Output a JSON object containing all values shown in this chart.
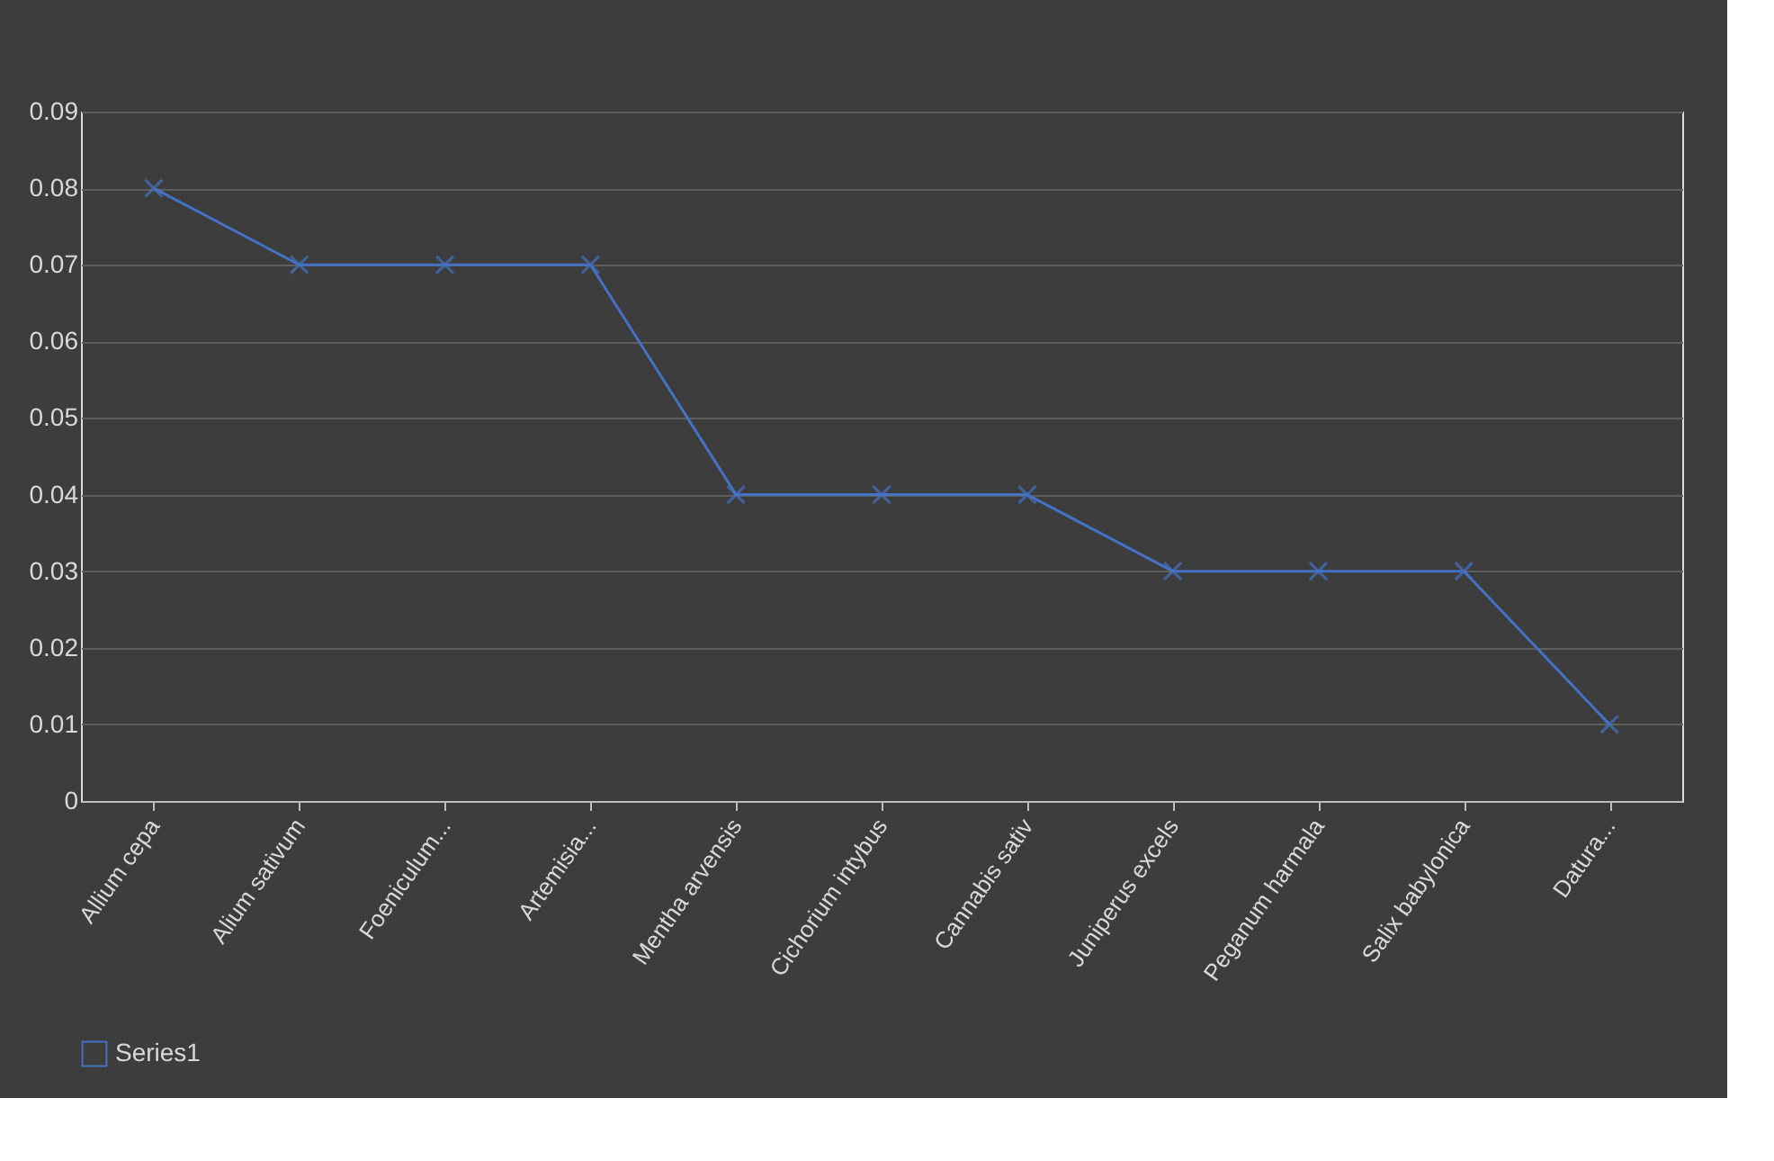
{
  "chart_data": {
    "type": "line",
    "categories": [
      "Allium cepa",
      "Alium sativum",
      "Foeniculum...",
      "Artemisia...",
      "Mentha arvensis",
      "Cichorium intybus",
      "Cannabis sativ",
      "Juniperus excels",
      "Peganum harmala",
      "Salix babylonica",
      "Datura..."
    ],
    "series": [
      {
        "name": "Series1",
        "color": "#4472c4",
        "values": [
          0.08,
          0.07,
          0.07,
          0.07,
          0.04,
          0.04,
          0.04,
          0.03,
          0.03,
          0.03,
          0.01
        ]
      }
    ],
    "ylim": [
      0,
      0.09
    ],
    "yticks": [
      0,
      0.01,
      0.02,
      0.03,
      0.04,
      0.05,
      0.06,
      0.07,
      0.08,
      0.09
    ],
    "grid": "y",
    "legend": "bottom",
    "marker": "cross",
    "line_style": "solid"
  }
}
